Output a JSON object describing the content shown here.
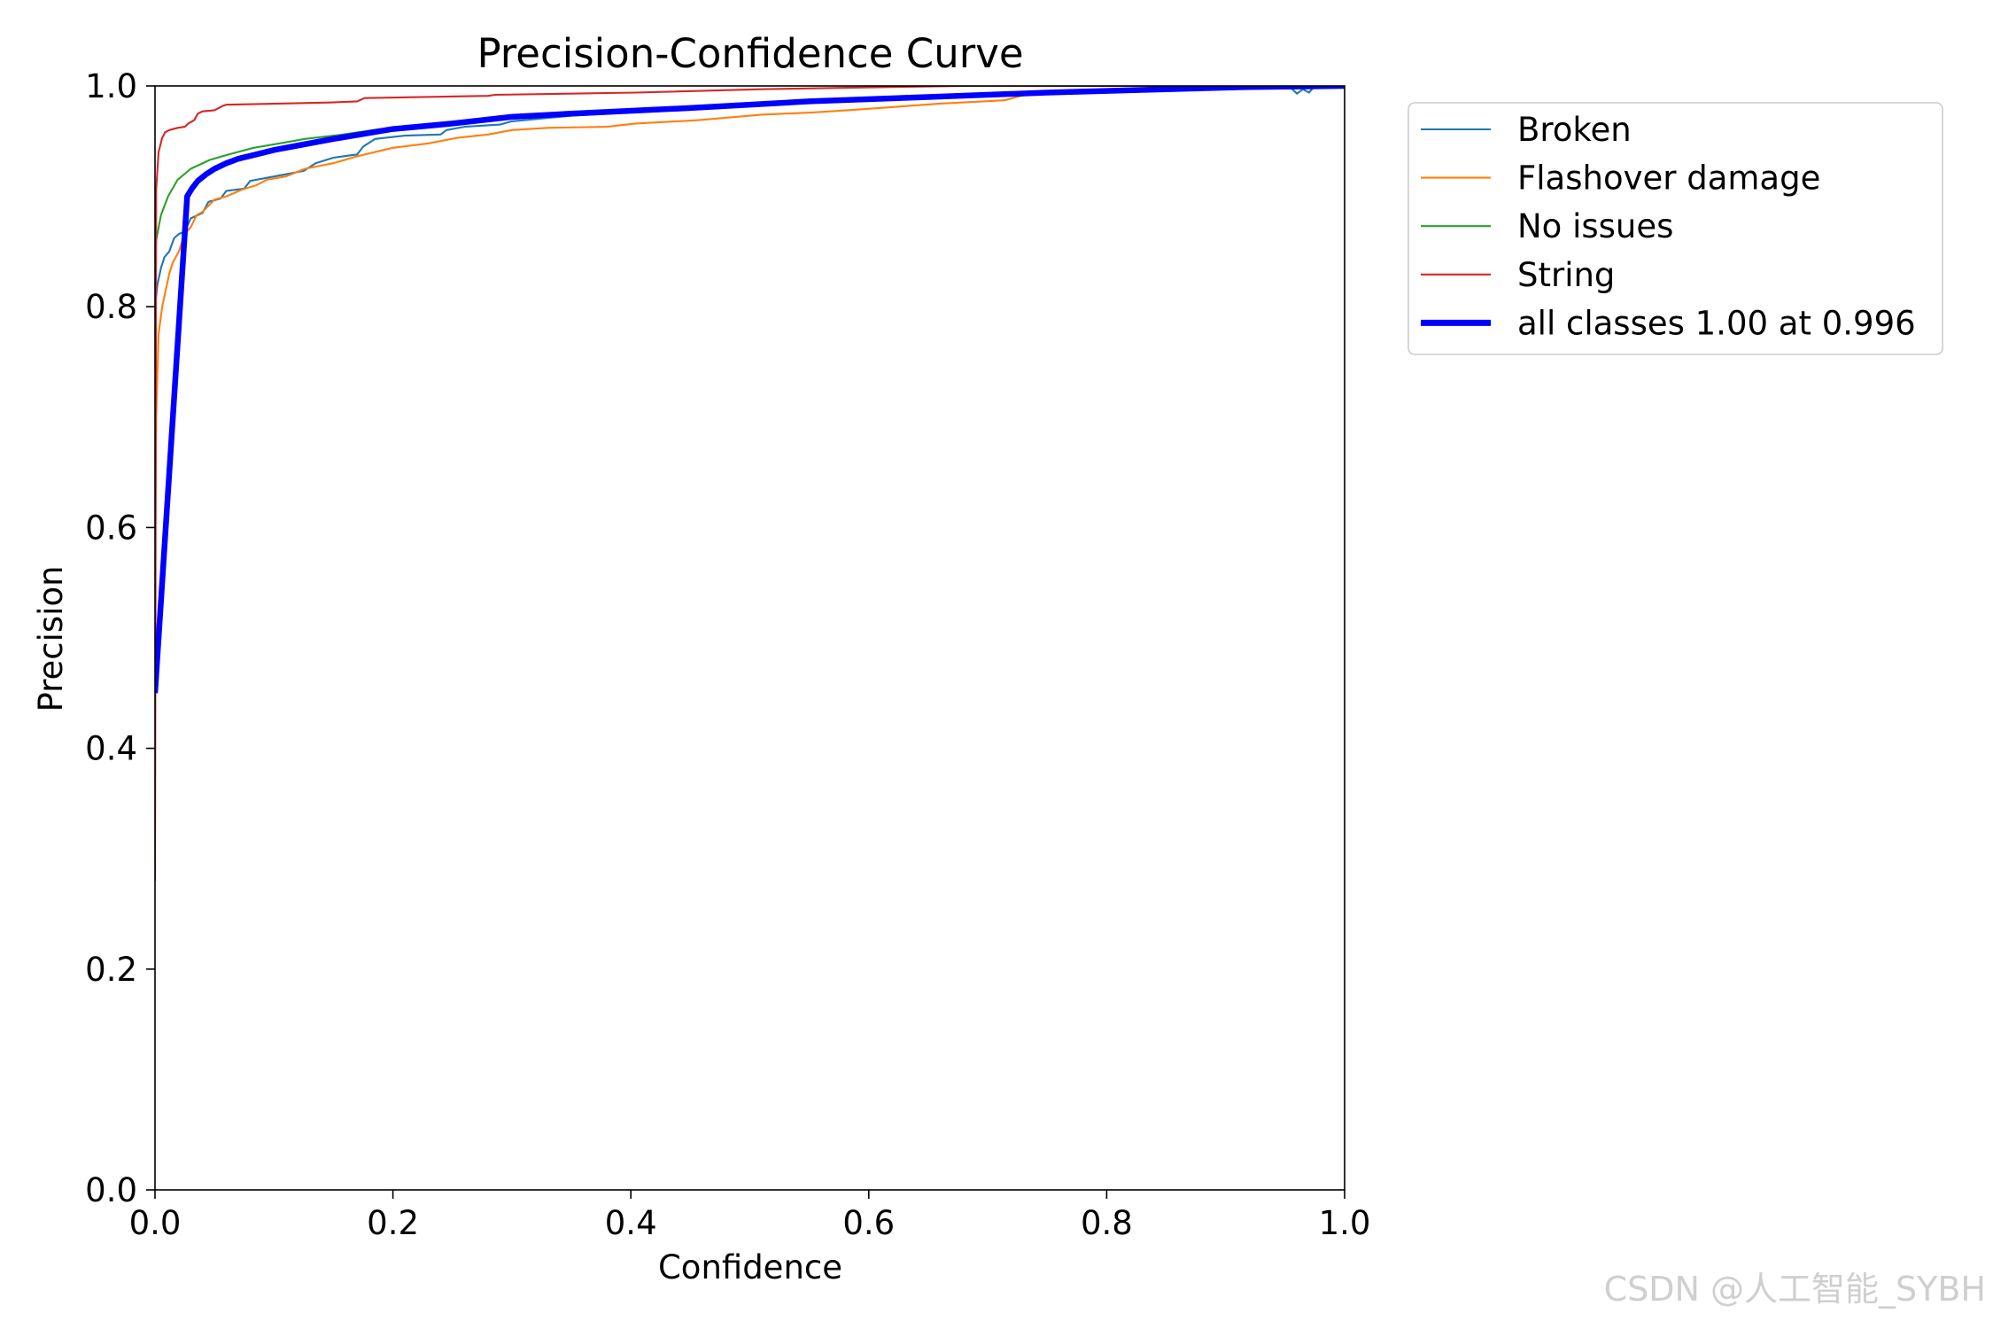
{
  "chart_data": {
    "type": "line",
    "title": "Precision-Confidence Curve",
    "xlabel": "Confidence",
    "ylabel": "Precision",
    "xlim": [
      0,
      1
    ],
    "ylim": [
      0,
      1
    ],
    "xtick_labels": [
      "0.0",
      "0.2",
      "0.4",
      "0.6",
      "0.8",
      "1.0"
    ],
    "ytick_labels": [
      "0.0",
      "0.2",
      "0.4",
      "0.6",
      "0.8",
      "1.0"
    ],
    "grid": false,
    "legend_position": "outside upper right",
    "series": [
      {
        "name": "Broken",
        "color": "#1f77b4",
        "points": [
          [
            0.0,
            0.8
          ],
          [
            0.002,
            0.82
          ],
          [
            0.005,
            0.835
          ],
          [
            0.008,
            0.845
          ],
          [
            0.012,
            0.85
          ],
          [
            0.016,
            0.862
          ],
          [
            0.02,
            0.866
          ],
          [
            0.025,
            0.868
          ],
          [
            0.03,
            0.88
          ],
          [
            0.04,
            0.885
          ],
          [
            0.045,
            0.895
          ],
          [
            0.055,
            0.898
          ],
          [
            0.06,
            0.905
          ],
          [
            0.075,
            0.907
          ],
          [
            0.08,
            0.914
          ],
          [
            0.11,
            0.92
          ],
          [
            0.125,
            0.923
          ],
          [
            0.135,
            0.93
          ],
          [
            0.15,
            0.935
          ],
          [
            0.17,
            0.938
          ],
          [
            0.175,
            0.945
          ],
          [
            0.185,
            0.952
          ],
          [
            0.21,
            0.955
          ],
          [
            0.24,
            0.956
          ],
          [
            0.245,
            0.96
          ],
          [
            0.26,
            0.963
          ],
          [
            0.29,
            0.965
          ],
          [
            0.3,
            0.968
          ],
          [
            0.35,
            0.973
          ],
          [
            0.45,
            0.979
          ],
          [
            0.55,
            0.985
          ],
          [
            0.65,
            0.989
          ],
          [
            0.75,
            0.993
          ],
          [
            0.85,
            0.996
          ],
          [
            0.93,
            0.999
          ],
          [
            0.955,
            0.998
          ],
          [
            0.96,
            0.993
          ],
          [
            0.965,
            0.997
          ],
          [
            0.97,
            0.994
          ],
          [
            0.975,
            1.0
          ],
          [
            1.0,
            1.0
          ]
        ]
      },
      {
        "name": "Flashover damage",
        "color": "#ff7f0e",
        "points": [
          [
            0.0,
            0.55
          ],
          [
            0.001,
            0.7
          ],
          [
            0.003,
            0.775
          ],
          [
            0.006,
            0.8
          ],
          [
            0.009,
            0.815
          ],
          [
            0.012,
            0.83
          ],
          [
            0.015,
            0.84
          ],
          [
            0.02,
            0.85
          ],
          [
            0.025,
            0.866
          ],
          [
            0.03,
            0.872
          ],
          [
            0.035,
            0.883
          ],
          [
            0.04,
            0.886
          ],
          [
            0.05,
            0.897
          ],
          [
            0.06,
            0.9
          ],
          [
            0.073,
            0.906
          ],
          [
            0.085,
            0.91
          ],
          [
            0.094,
            0.915
          ],
          [
            0.11,
            0.918
          ],
          [
            0.126,
            0.925
          ],
          [
            0.15,
            0.93
          ],
          [
            0.169,
            0.936
          ],
          [
            0.2,
            0.944
          ],
          [
            0.23,
            0.948
          ],
          [
            0.254,
            0.953
          ],
          [
            0.28,
            0.956
          ],
          [
            0.3,
            0.96
          ],
          [
            0.33,
            0.962
          ],
          [
            0.38,
            0.963
          ],
          [
            0.404,
            0.966
          ],
          [
            0.457,
            0.969
          ],
          [
            0.51,
            0.974
          ],
          [
            0.553,
            0.976
          ],
          [
            0.596,
            0.979
          ],
          [
            0.66,
            0.984
          ],
          [
            0.714,
            0.987
          ],
          [
            0.735,
            0.993
          ],
          [
            0.81,
            0.996
          ],
          [
            0.86,
            0.999
          ],
          [
            0.95,
            1.0
          ],
          [
            1.0,
            1.0
          ]
        ]
      },
      {
        "name": "No issues",
        "color": "#2ca02c",
        "points": [
          [
            0.0,
            0.82
          ],
          [
            0.001,
            0.86
          ],
          [
            0.005,
            0.883
          ],
          [
            0.011,
            0.9
          ],
          [
            0.019,
            0.915
          ],
          [
            0.03,
            0.925
          ],
          [
            0.046,
            0.933
          ],
          [
            0.062,
            0.938
          ],
          [
            0.083,
            0.944
          ],
          [
            0.105,
            0.948
          ],
          [
            0.126,
            0.952
          ],
          [
            0.158,
            0.956
          ],
          [
            0.19,
            0.961
          ],
          [
            0.25,
            0.966
          ],
          [
            0.3,
            0.971
          ],
          [
            0.4,
            0.977
          ],
          [
            0.5,
            0.983
          ],
          [
            0.6,
            0.988
          ],
          [
            0.7,
            0.992
          ],
          [
            0.8,
            0.995
          ],
          [
            0.9,
            0.998
          ],
          [
            1.0,
            1.0
          ]
        ]
      },
      {
        "name": "String",
        "color": "#d62728",
        "points": [
          [
            0.0,
            0.28
          ],
          [
            0.001,
            0.906
          ],
          [
            0.003,
            0.94
          ],
          [
            0.006,
            0.953
          ],
          [
            0.0085,
            0.958
          ],
          [
            0.012,
            0.96
          ],
          [
            0.019,
            0.962
          ],
          [
            0.025,
            0.963
          ],
          [
            0.028,
            0.966
          ],
          [
            0.033,
            0.969
          ],
          [
            0.036,
            0.975
          ],
          [
            0.04,
            0.977
          ],
          [
            0.05,
            0.978
          ],
          [
            0.057,
            0.982
          ],
          [
            0.06,
            0.983
          ],
          [
            0.147,
            0.985
          ],
          [
            0.17,
            0.986
          ],
          [
            0.176,
            0.989
          ],
          [
            0.28,
            0.991
          ],
          [
            0.286,
            0.992
          ],
          [
            0.404,
            0.994
          ],
          [
            0.51,
            0.997
          ],
          [
            0.62,
            0.999
          ],
          [
            0.68,
            1.0
          ],
          [
            1.0,
            1.0
          ]
        ]
      },
      {
        "name": "all classes 1.00 at 0.996",
        "color": "#0000ff",
        "points": [
          [
            0.0,
            0.45
          ],
          [
            0.027,
            0.9
          ],
          [
            0.031,
            0.907
          ],
          [
            0.036,
            0.914
          ],
          [
            0.043,
            0.92
          ],
          [
            0.05,
            0.925
          ],
          [
            0.06,
            0.93
          ],
          [
            0.07,
            0.934
          ],
          [
            0.085,
            0.938
          ],
          [
            0.1,
            0.942
          ],
          [
            0.125,
            0.947
          ],
          [
            0.15,
            0.952
          ],
          [
            0.2,
            0.961
          ],
          [
            0.25,
            0.966
          ],
          [
            0.3,
            0.972
          ],
          [
            0.35,
            0.975
          ],
          [
            0.45,
            0.98
          ],
          [
            0.55,
            0.986
          ],
          [
            0.65,
            0.99
          ],
          [
            0.75,
            0.994
          ],
          [
            0.85,
            0.997
          ],
          [
            0.92,
            0.999
          ],
          [
            1.0,
            1.0
          ]
        ]
      }
    ]
  },
  "watermark": "CSDN @人工智能_SYBH"
}
